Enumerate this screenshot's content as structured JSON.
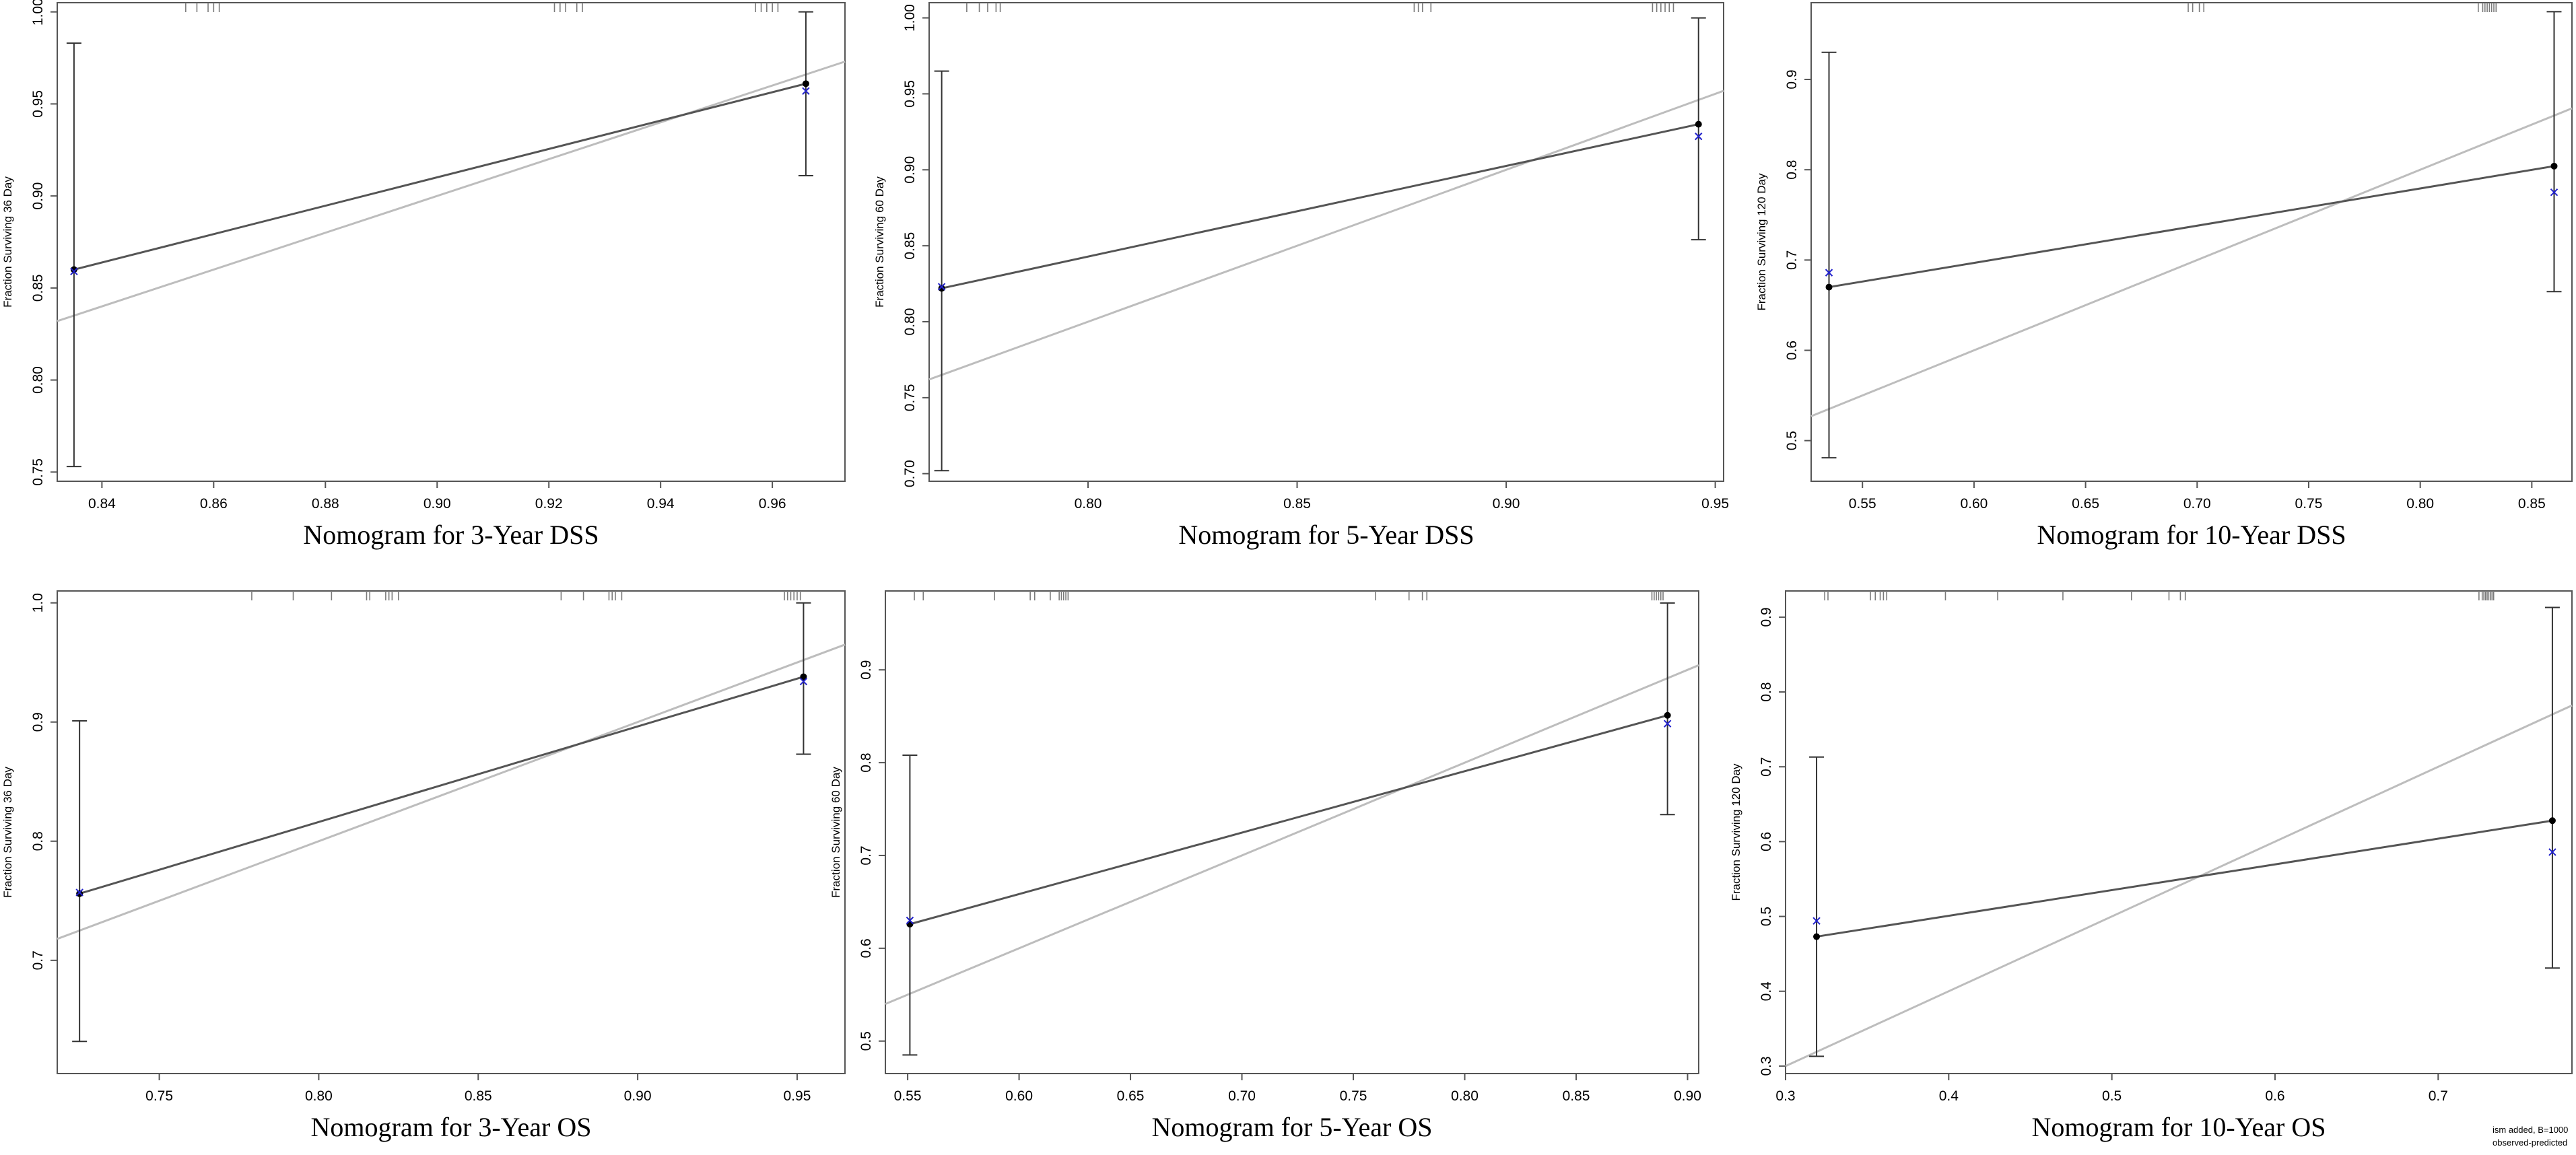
{
  "chart_data": [
    {
      "type": "line",
      "title": "Nomogram for 3-Year DSS",
      "ylabel": "Fraction Surviving 36 Day",
      "xlim": [
        0.832,
        0.973
      ],
      "ylim": [
        0.745,
        1.005
      ],
      "xticks": [
        0.84,
        0.86,
        0.88,
        0.9,
        0.92,
        0.94,
        0.96
      ],
      "yticks": [
        0.75,
        0.8,
        0.85,
        0.9,
        0.95,
        1.0
      ],
      "xtick_labels": [
        "0.84",
        "0.86",
        "0.88",
        "0.90",
        "0.92",
        "0.94",
        "0.96"
      ],
      "ytick_labels": [
        "0.75",
        "0.80",
        "0.85",
        "0.90",
        "0.95",
        "1.00"
      ],
      "observed": [
        {
          "x": 0.835,
          "y": 0.86,
          "lo": 0.753,
          "hi": 0.983
        },
        {
          "x": 0.966,
          "y": 0.961,
          "lo": 0.911,
          "hi": 1.0
        }
      ],
      "bias_corrected": [
        {
          "x": 0.835,
          "y": 0.859
        },
        {
          "x": 0.966,
          "y": 0.957
        }
      ],
      "rug": [
        0.855,
        0.857,
        0.859,
        0.86,
        0.861,
        0.921,
        0.922,
        0.923,
        0.925,
        0.926,
        0.957,
        0.958,
        0.959,
        0.96,
        0.961
      ]
    },
    {
      "type": "line",
      "title": "Nomogram for 5-Year DSS",
      "ylabel": "Fraction Surviving 60 Day",
      "xlim": [
        0.762,
        0.952
      ],
      "ylim": [
        0.695,
        1.01
      ],
      "xticks": [
        0.8,
        0.85,
        0.9,
        0.95
      ],
      "yticks": [
        0.7,
        0.75,
        0.8,
        0.85,
        0.9,
        0.95,
        1.0
      ],
      "xtick_labels": [
        "0.80",
        "0.85",
        "0.90",
        "0.95"
      ],
      "ytick_labels": [
        "0.70",
        "0.75",
        "0.80",
        "0.85",
        "0.90",
        "0.95",
        "1.00"
      ],
      "observed": [
        {
          "x": 0.765,
          "y": 0.822,
          "lo": 0.702,
          "hi": 0.965
        },
        {
          "x": 0.946,
          "y": 0.93,
          "lo": 0.854,
          "hi": 1.0
        }
      ],
      "bias_corrected": [
        {
          "x": 0.765,
          "y": 0.823
        },
        {
          "x": 0.946,
          "y": 0.922
        }
      ],
      "rug": [
        0.771,
        0.774,
        0.776,
        0.778,
        0.779,
        0.878,
        0.879,
        0.88,
        0.882,
        0.935,
        0.936,
        0.937,
        0.938,
        0.939,
        0.94
      ]
    },
    {
      "type": "line",
      "title": "Nomogram for 10-Year DSS",
      "ylabel": "Fraction Surviving 120 Day",
      "xlim": [
        0.527,
        0.868
      ],
      "ylim": [
        0.455,
        0.985
      ],
      "xticks": [
        0.55,
        0.6,
        0.65,
        0.7,
        0.75,
        0.8,
        0.85
      ],
      "yticks": [
        0.5,
        0.6,
        0.7,
        0.8,
        0.9
      ],
      "xtick_labels": [
        "0.55",
        "0.60",
        "0.65",
        "0.70",
        "0.75",
        "0.80",
        "0.85"
      ],
      "ytick_labels": [
        "0.5",
        "0.6",
        "0.7",
        "0.8",
        "0.9"
      ],
      "observed": [
        {
          "x": 0.535,
          "y": 0.67,
          "lo": 0.481,
          "hi": 0.93
        },
        {
          "x": 0.86,
          "y": 0.804,
          "lo": 0.665,
          "hi": 0.975
        }
      ],
      "bias_corrected": [
        {
          "x": 0.535,
          "y": 0.686
        },
        {
          "x": 0.86,
          "y": 0.775
        }
      ],
      "rug": [
        0.696,
        0.698,
        0.701,
        0.703,
        0.826,
        0.828,
        0.829,
        0.83,
        0.831,
        0.832,
        0.833,
        0.834
      ]
    },
    {
      "type": "line",
      "title": "Nomogram for 3-Year OS",
      "ylabel": "Fraction Surviving 36 Day",
      "xlim": [
        0.718,
        0.965
      ],
      "ylim": [
        0.605,
        1.01
      ],
      "xticks": [
        0.75,
        0.8,
        0.85,
        0.9,
        0.95
      ],
      "yticks": [
        0.7,
        0.8,
        0.9,
        1.0
      ],
      "xtick_labels": [
        "0.75",
        "0.80",
        "0.85",
        "0.90",
        "0.95"
      ],
      "ytick_labels": [
        "0.7",
        "0.8",
        "0.9",
        "1.0"
      ],
      "observed": [
        {
          "x": 0.725,
          "y": 0.756,
          "lo": 0.632,
          "hi": 0.901
        },
        {
          "x": 0.952,
          "y": 0.938,
          "lo": 0.873,
          "hi": 1.0
        }
      ],
      "bias_corrected": [
        {
          "x": 0.725,
          "y": 0.757
        },
        {
          "x": 0.952,
          "y": 0.934
        }
      ],
      "rug": [
        0.779,
        0.792,
        0.804,
        0.815,
        0.816,
        0.821,
        0.822,
        0.823,
        0.825,
        0.876,
        0.883,
        0.891,
        0.892,
        0.893,
        0.895,
        0.946,
        0.947,
        0.948,
        0.949,
        0.95,
        0.951
      ]
    },
    {
      "type": "line",
      "title": "Nomogram for 5-Year OS",
      "ylabel": "Fraction Surviving 60 Day",
      "xlim": [
        0.54,
        0.905
      ],
      "ylim": [
        0.465,
        0.985
      ],
      "xticks": [
        0.55,
        0.6,
        0.65,
        0.7,
        0.75,
        0.8,
        0.85,
        0.9
      ],
      "yticks": [
        0.5,
        0.6,
        0.7,
        0.8,
        0.9
      ],
      "xtick_labels": [
        "0.55",
        "0.60",
        "0.65",
        "0.70",
        "0.75",
        "0.80",
        "0.85",
        "0.90"
      ],
      "ytick_labels": [
        "0.5",
        "0.6",
        "0.7",
        "0.8",
        "0.9"
      ],
      "observed": [
        {
          "x": 0.551,
          "y": 0.626,
          "lo": 0.485,
          "hi": 0.808
        },
        {
          "x": 0.891,
          "y": 0.851,
          "lo": 0.744,
          "hi": 0.972
        }
      ],
      "bias_corrected": [
        {
          "x": 0.551,
          "y": 0.63
        },
        {
          "x": 0.891,
          "y": 0.842
        }
      ],
      "rug": [
        0.553,
        0.557,
        0.589,
        0.605,
        0.607,
        0.614,
        0.618,
        0.619,
        0.62,
        0.621,
        0.622,
        0.76,
        0.775,
        0.781,
        0.783,
        0.884,
        0.885,
        0.886,
        0.887,
        0.888,
        0.889
      ]
    },
    {
      "type": "line",
      "title": "Nomogram for 10-Year OS",
      "ylabel": "Fraction Surviving 120 Day",
      "xlim": [
        0.3,
        0.782
      ],
      "ylim": [
        0.29,
        0.935
      ],
      "xticks": [
        0.3,
        0.4,
        0.5,
        0.6,
        0.7
      ],
      "yticks": [
        0.3,
        0.4,
        0.5,
        0.6,
        0.7,
        0.8,
        0.9
      ],
      "xtick_labels": [
        "0.3",
        "0.4",
        "0.5",
        "0.6",
        "0.7"
      ],
      "ytick_labels": [
        "0.3",
        "0.4",
        "0.5",
        "0.6",
        "0.7",
        "0.8",
        "0.9"
      ],
      "observed": [
        {
          "x": 0.319,
          "y": 0.473,
          "lo": 0.313,
          "hi": 0.713
        },
        {
          "x": 0.77,
          "y": 0.628,
          "lo": 0.431,
          "hi": 0.913
        }
      ],
      "bias_corrected": [
        {
          "x": 0.319,
          "y": 0.494
        },
        {
          "x": 0.77,
          "y": 0.586
        }
      ],
      "rug": [
        0.324,
        0.326,
        0.352,
        0.355,
        0.358,
        0.36,
        0.362,
        0.398,
        0.43,
        0.47,
        0.512,
        0.535,
        0.542,
        0.545,
        0.725,
        0.727,
        0.728,
        0.729,
        0.73,
        0.731,
        0.732,
        0.733,
        0.734
      ]
    }
  ],
  "footnote": {
    "line1": "ism added, B=1000",
    "line2": "observed-predicted"
  },
  "colors": {
    "apparent_line": "#555555",
    "ideal_line": "#bdbdbd",
    "bias_mark": "#2222cc",
    "point": "#000000",
    "rug": "#7a7a7a"
  }
}
